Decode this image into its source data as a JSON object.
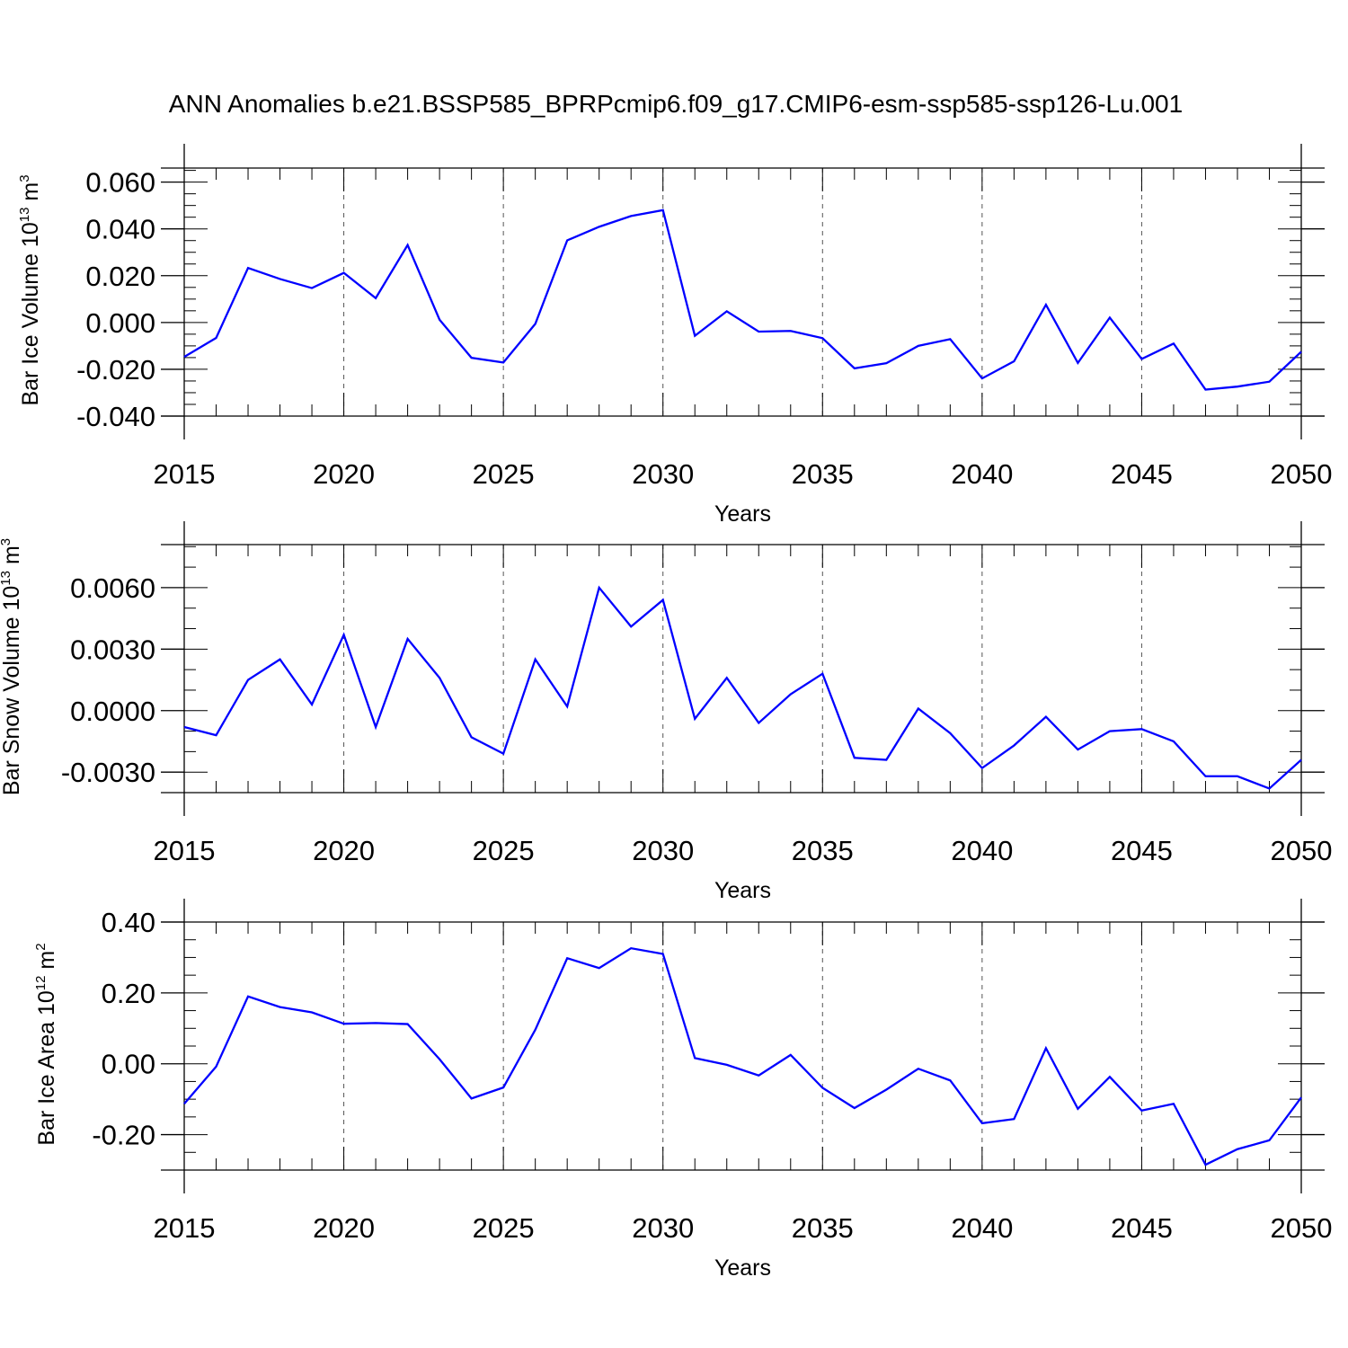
{
  "title": "ANN Anomalies b.e21.BSSP585_BPRPcmip6.f09_g17.CMIP6-esm-ssp585-ssp126-Lu.001",
  "colors": {
    "line": "#0000ff",
    "axis": "#000000",
    "grid": "#555555"
  },
  "chart_data": [
    {
      "type": "line",
      "ylabel": {
        "text": "Bar Ice Volume 10",
        "exp": "13",
        "unit": " m",
        "unit_exp": "3"
      },
      "xlabel": "Years",
      "xlim": [
        2015,
        2050
      ],
      "ylim": [
        -0.04,
        0.066
      ],
      "yticks": [
        -0.04,
        -0.02,
        0.0,
        0.02,
        0.04,
        0.06
      ],
      "yticklabels": [
        "-0.040",
        "-0.020",
        "0.000",
        "0.020",
        "0.040",
        "0.060"
      ],
      "yminor": 0.005,
      "xticks": [
        2015,
        2020,
        2025,
        2030,
        2035,
        2040,
        2045,
        2050
      ],
      "xticklabels": [
        "2015",
        "2020",
        "2025",
        "2030",
        "2035",
        "2040",
        "2045",
        "2050"
      ],
      "x": [
        2015,
        2016,
        2017,
        2018,
        2019,
        2020,
        2021,
        2022,
        2023,
        2024,
        2025,
        2026,
        2027,
        2028,
        2029,
        2030,
        2031,
        2032,
        2033,
        2034,
        2035,
        2036,
        2037,
        2038,
        2039,
        2040,
        2041,
        2042,
        2043,
        2044,
        2045,
        2046,
        2047,
        2048,
        2049,
        2050
      ],
      "values": [
        -0.0147,
        -0.0066,
        0.0233,
        0.0186,
        0.0147,
        0.0212,
        0.0104,
        0.0331,
        0.0012,
        -0.0151,
        -0.0171,
        -0.0006,
        0.0351,
        0.0409,
        0.0455,
        0.048,
        -0.0057,
        0.0048,
        -0.0039,
        -0.0036,
        -0.0067,
        -0.0196,
        -0.0174,
        -0.01,
        -0.0071,
        -0.0239,
        -0.0166,
        0.0076,
        -0.0173,
        0.0021,
        -0.0156,
        -0.009,
        -0.0287,
        -0.0274,
        -0.0253,
        -0.0125
      ]
    },
    {
      "type": "line",
      "ylabel": {
        "text": "Bar Snow Volume 10",
        "exp": "13",
        "unit": " m",
        "unit_exp": "3"
      },
      "xlabel": "Years",
      "xlim": [
        2015,
        2050
      ],
      "ylim": [
        -0.004,
        0.0081
      ],
      "yticks": [
        -0.003,
        0.0,
        0.003,
        0.006
      ],
      "yticklabels": [
        "-0.0030",
        "0.0000",
        "0.0030",
        "0.0060"
      ],
      "yminor": 0.001,
      "xticks": [
        2015,
        2020,
        2025,
        2030,
        2035,
        2040,
        2045,
        2050
      ],
      "xticklabels": [
        "2015",
        "2020",
        "2025",
        "2030",
        "2035",
        "2040",
        "2045",
        "2050"
      ],
      "x": [
        2015,
        2016,
        2017,
        2018,
        2019,
        2020,
        2021,
        2022,
        2023,
        2024,
        2025,
        2026,
        2027,
        2028,
        2029,
        2030,
        2031,
        2032,
        2033,
        2034,
        2035,
        2036,
        2037,
        2038,
        2039,
        2040,
        2041,
        2042,
        2043,
        2044,
        2045,
        2046,
        2047,
        2048,
        2049,
        2050
      ],
      "values": [
        -0.0008,
        -0.0012,
        0.0015,
        0.0025,
        0.0003,
        0.0037,
        -0.0008,
        0.0035,
        0.0016,
        -0.0013,
        -0.0021,
        0.0025,
        0.0002,
        0.006,
        0.0041,
        0.0054,
        -0.0004,
        0.0016,
        -0.0006,
        0.0008,
        0.0018,
        -0.0023,
        -0.0024,
        0.0001,
        -0.0011,
        -0.0028,
        -0.0017,
        -0.0003,
        -0.0019,
        -0.001,
        -0.0009,
        -0.0015,
        -0.0032,
        -0.0032,
        -0.0038,
        -0.0024
      ]
    },
    {
      "type": "line",
      "ylabel": {
        "text": "Bar Ice Area 10",
        "exp": "12",
        "unit": " m",
        "unit_exp": "2"
      },
      "xlabel": "Years",
      "xlim": [
        2015,
        2050
      ],
      "ylim": [
        -0.3,
        0.4
      ],
      "yticks": [
        -0.2,
        0.0,
        0.2,
        0.4
      ],
      "yticklabels": [
        "-0.20",
        "0.00",
        "0.20",
        "0.40"
      ],
      "yminor": 0.05,
      "xticks": [
        2015,
        2020,
        2025,
        2030,
        2035,
        2040,
        2045,
        2050
      ],
      "xticklabels": [
        "2015",
        "2020",
        "2025",
        "2030",
        "2035",
        "2040",
        "2045",
        "2050"
      ],
      "x": [
        2015,
        2016,
        2017,
        2018,
        2019,
        2020,
        2021,
        2022,
        2023,
        2024,
        2025,
        2026,
        2027,
        2028,
        2029,
        2030,
        2031,
        2032,
        2033,
        2034,
        2035,
        2036,
        2037,
        2038,
        2039,
        2040,
        2041,
        2042,
        2043,
        2044,
        2045,
        2046,
        2047,
        2048,
        2049,
        2050
      ],
      "values": [
        -0.113,
        -0.008,
        0.19,
        0.16,
        0.145,
        0.113,
        0.115,
        0.112,
        0.013,
        -0.098,
        -0.067,
        0.096,
        0.298,
        0.27,
        0.326,
        0.31,
        0.016,
        -0.003,
        -0.033,
        0.025,
        -0.068,
        -0.125,
        -0.073,
        -0.014,
        -0.047,
        -0.168,
        -0.156,
        0.044,
        -0.127,
        -0.037,
        -0.132,
        -0.113,
        -0.285,
        -0.241,
        -0.216,
        -0.095
      ]
    }
  ]
}
